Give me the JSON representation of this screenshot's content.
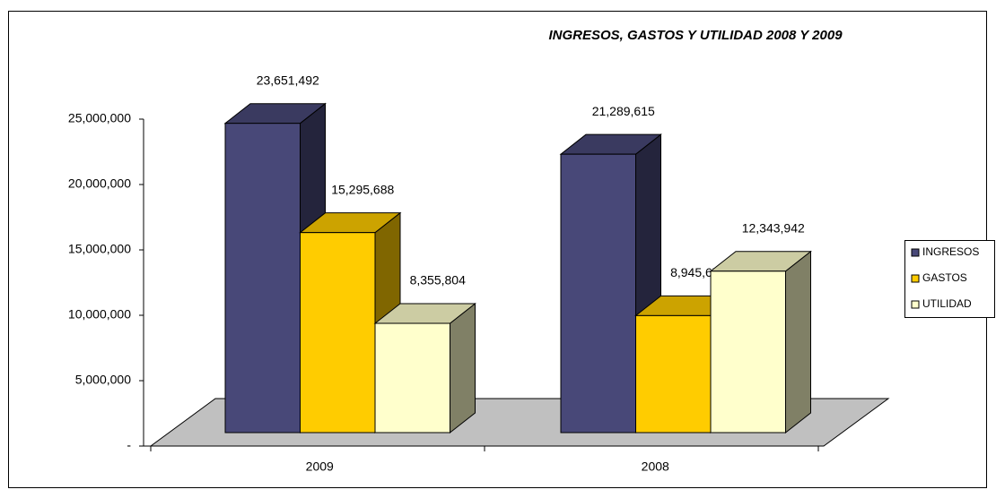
{
  "chart_data": {
    "type": "bar3d",
    "title": "INGRESOS, GASTOS Y UTILIDAD 2008 Y 2009",
    "categories": [
      "2009",
      "2008"
    ],
    "series": [
      {
        "name": "INGRESOS",
        "color": "#484878",
        "values": [
          23651492,
          21289615
        ],
        "value_labels": [
          "23,651,492",
          "21,289,615"
        ]
      },
      {
        "name": "GASTOS",
        "color": "#ffcc00",
        "values": [
          15295688,
          8945673
        ],
        "value_labels": [
          "15,295,688",
          "8,945,673"
        ]
      },
      {
        "name": "UTILIDAD",
        "color": "#ffffcc",
        "values": [
          8355804,
          12343942
        ],
        "value_labels": [
          "8,355,804",
          "12,343,942"
        ]
      }
    ],
    "ylim": [
      0,
      25000000
    ],
    "yticks": [
      {
        "value": 0,
        "label": "-"
      },
      {
        "value": 5000000,
        "label": "5,000,000"
      },
      {
        "value": 10000000,
        "label": "10,000,000"
      },
      {
        "value": 15000000,
        "label": "15,000,000"
      },
      {
        "value": 20000000,
        "label": "20,000,000"
      },
      {
        "value": 25000000,
        "label": "25,000,000"
      }
    ],
    "legend": "right"
  }
}
